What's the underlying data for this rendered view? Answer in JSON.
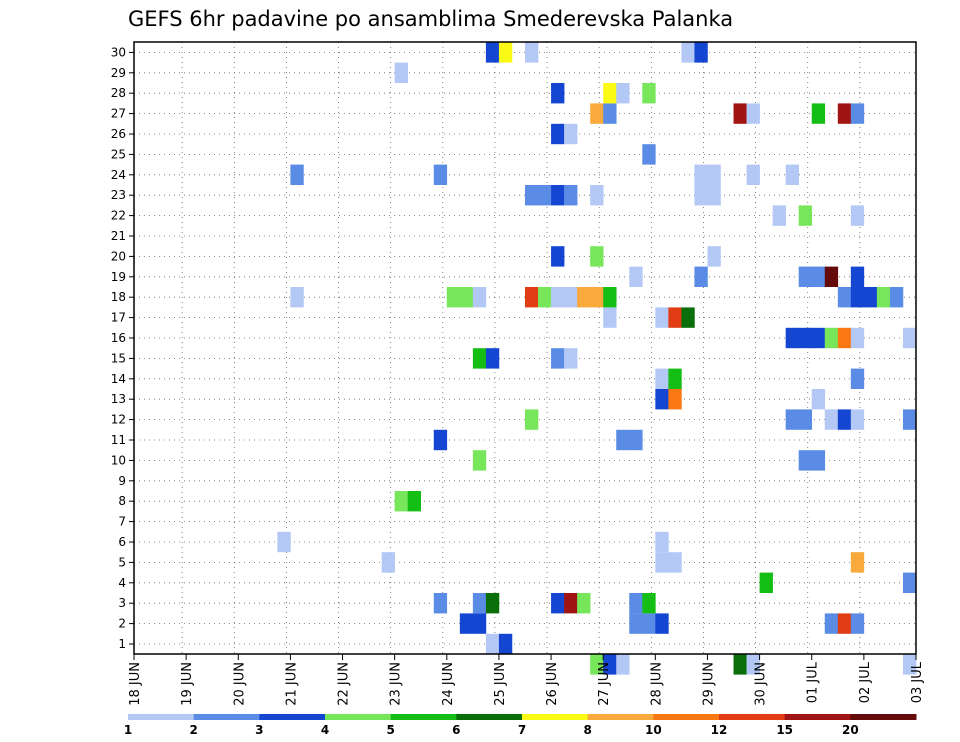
{
  "chart_data": {
    "type": "heatmap",
    "title": "GEFS 6hr padavine po ansamblima Smederevska Palanka",
    "xlabel": "",
    "ylabel": "",
    "x_tick_labels": [
      "18 JUN",
      "19 JUN",
      "20 JUN",
      "21 JUN",
      "22 JUN",
      "23 JUN",
      "24 JUN",
      "25 JUN",
      "26 JUN",
      "27 JUN",
      "28 JUN",
      "29 JUN",
      "30 JUN",
      "01 JUL",
      "02 JUL",
      "03 JUL"
    ],
    "x_unit": "6-hour steps from 18 JUN",
    "xlim": [
      0,
      60
    ],
    "y_tick_labels": [
      "1",
      "2",
      "3",
      "4",
      "5",
      "6",
      "7",
      "8",
      "9",
      "10",
      "11",
      "12",
      "13",
      "14",
      "15",
      "16",
      "17",
      "18",
      "19",
      "20",
      "21",
      "22",
      "23",
      "24",
      "25",
      "26",
      "27",
      "28",
      "29",
      "30"
    ],
    "ylim": [
      0,
      30
    ],
    "grid": true,
    "legend": {
      "placement": "bottom",
      "levels": [
        "1",
        "2",
        "3",
        "4",
        "5",
        "6",
        "7",
        "8",
        "10",
        "12",
        "15",
        "20",
        ""
      ],
      "colors": [
        "#b4c8f6",
        "#5a8ce6",
        "#1446d2",
        "#78e65a",
        "#14be14",
        "#0a6e0a",
        "#fafa14",
        "#faaa3c",
        "#fa7814",
        "#e13c14",
        "#a01414",
        "#640a0a"
      ]
    },
    "cells": [
      [
        27,
        0,
        0
      ],
      [
        28,
        0,
        2
      ],
      [
        25,
        1,
        2
      ],
      [
        26,
        1,
        2
      ],
      [
        38,
        1,
        1
      ],
      [
        39,
        1,
        1
      ],
      [
        40,
        1,
        2
      ],
      [
        53,
        1,
        1
      ],
      [
        54,
        1,
        9
      ],
      [
        55,
        1,
        1
      ],
      [
        23,
        2,
        1
      ],
      [
        26,
        2,
        1
      ],
      [
        27,
        2,
        5
      ],
      [
        32,
        2,
        2
      ],
      [
        33,
        2,
        10
      ],
      [
        34,
        2,
        3
      ],
      [
        38,
        2,
        1
      ],
      [
        39,
        2,
        4
      ],
      [
        48,
        3,
        4
      ],
      [
        59,
        3,
        1
      ],
      [
        19,
        4,
        0
      ],
      [
        40,
        4,
        0
      ],
      [
        41,
        4,
        0
      ],
      [
        55,
        4,
        7
      ],
      [
        11,
        5,
        0
      ],
      [
        40,
        5,
        0
      ],
      [
        20,
        7,
        3
      ],
      [
        21,
        7,
        4
      ],
      [
        26,
        9,
        3
      ],
      [
        51,
        9,
        1
      ],
      [
        52,
        9,
        1
      ],
      [
        23,
        10,
        2
      ],
      [
        37,
        10,
        1
      ],
      [
        38,
        10,
        1
      ],
      [
        30,
        11,
        3
      ],
      [
        50,
        11,
        1
      ],
      [
        51,
        11,
        1
      ],
      [
        53,
        11,
        0
      ],
      [
        54,
        11,
        2
      ],
      [
        55,
        11,
        0
      ],
      [
        59,
        11,
        1
      ],
      [
        40,
        12,
        2
      ],
      [
        41,
        12,
        8
      ],
      [
        52,
        12,
        0
      ],
      [
        40,
        13,
        0
      ],
      [
        41,
        13,
        4
      ],
      [
        55,
        13,
        1
      ],
      [
        26,
        14,
        4
      ],
      [
        27,
        14,
        2
      ],
      [
        32,
        14,
        1
      ],
      [
        33,
        14,
        0
      ],
      [
        50,
        15,
        2
      ],
      [
        51,
        15,
        2
      ],
      [
        52,
        15,
        2
      ],
      [
        53,
        15,
        3
      ],
      [
        54,
        15,
        8
      ],
      [
        55,
        15,
        0
      ],
      [
        59,
        15,
        0
      ],
      [
        36,
        16,
        0
      ],
      [
        40,
        16,
        0
      ],
      [
        41,
        16,
        9
      ],
      [
        42,
        16,
        5
      ],
      [
        12,
        17,
        0
      ],
      [
        24,
        17,
        3
      ],
      [
        25,
        17,
        3
      ],
      [
        26,
        17,
        0
      ],
      [
        30,
        17,
        9
      ],
      [
        31,
        17,
        3
      ],
      [
        32,
        17,
        0
      ],
      [
        33,
        17,
        0
      ],
      [
        34,
        17,
        7
      ],
      [
        35,
        17,
        7
      ],
      [
        36,
        17,
        4
      ],
      [
        54,
        17,
        1
      ],
      [
        55,
        17,
        2
      ],
      [
        56,
        17,
        2
      ],
      [
        57,
        17,
        3
      ],
      [
        58,
        17,
        1
      ],
      [
        38,
        18,
        0
      ],
      [
        43,
        18,
        1
      ],
      [
        51,
        18,
        1
      ],
      [
        52,
        18,
        1
      ],
      [
        53,
        18,
        11
      ],
      [
        55,
        18,
        2
      ],
      [
        32,
        19,
        2
      ],
      [
        35,
        19,
        3
      ],
      [
        44,
        19,
        0
      ],
      [
        51,
        21,
        3
      ],
      [
        55,
        21,
        0
      ],
      [
        49,
        21,
        0
      ],
      [
        30,
        22,
        1
      ],
      [
        31,
        22,
        1
      ],
      [
        32,
        22,
        2
      ],
      [
        33,
        22,
        1
      ],
      [
        35,
        22,
        0
      ],
      [
        43,
        22,
        0
      ],
      [
        44,
        22,
        0
      ],
      [
        12,
        23,
        1
      ],
      [
        23,
        23,
        1
      ],
      [
        43,
        23,
        0
      ],
      [
        44,
        23,
        0
      ],
      [
        47,
        23,
        0
      ],
      [
        50,
        23,
        0
      ],
      [
        39,
        24,
        1
      ],
      [
        32,
        25,
        2
      ],
      [
        33,
        25,
        0
      ],
      [
        35,
        26,
        7
      ],
      [
        36,
        26,
        1
      ],
      [
        46,
        26,
        10
      ],
      [
        47,
        26,
        0
      ],
      [
        52,
        26,
        4
      ],
      [
        54,
        26,
        10
      ],
      [
        55,
        26,
        1
      ],
      [
        32,
        27,
        2
      ],
      [
        36,
        27,
        6
      ],
      [
        37,
        27,
        0
      ],
      [
        39,
        27,
        3
      ],
      [
        20,
        28,
        0
      ],
      [
        27,
        29,
        2
      ],
      [
        28,
        29,
        6
      ],
      [
        30,
        29,
        0
      ],
      [
        42,
        29,
        0
      ],
      [
        43,
        29,
        2
      ],
      [
        35,
        -1,
        3
      ],
      [
        36,
        -1,
        2
      ],
      [
        37,
        -1,
        0
      ],
      [
        46,
        -1,
        5
      ],
      [
        47,
        -1,
        0
      ],
      [
        59,
        -1,
        0
      ]
    ]
  }
}
